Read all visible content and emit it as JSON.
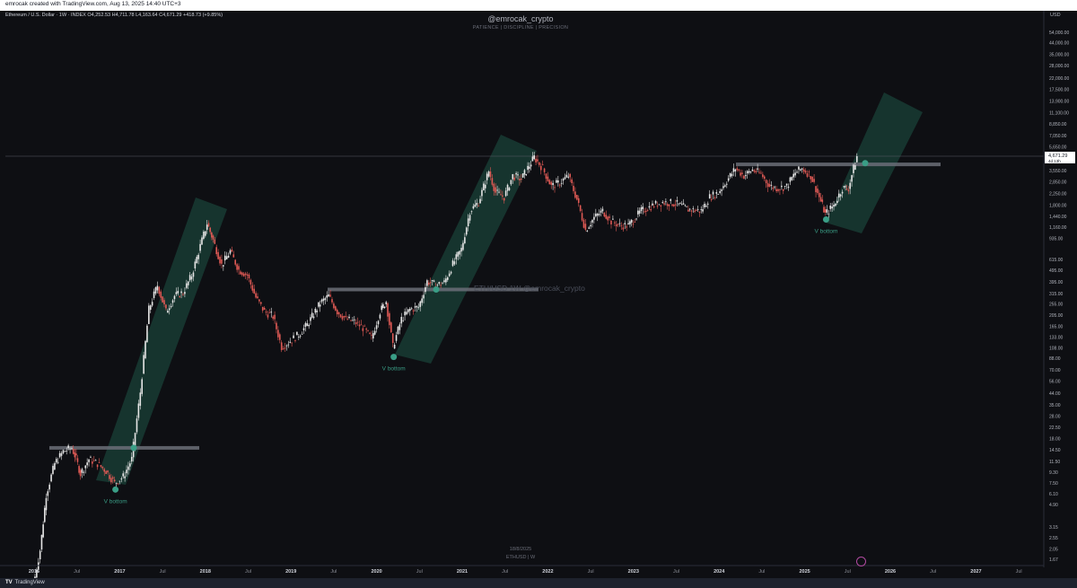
{
  "header": {
    "created_with": "emrocak created with TradingView.com, Aug 13, 2025 14:40 UTC+3",
    "symbol_info": "Ethereum / U.S. Dollar · 1W · INDEX  O4,252.53  H4,711.78  L4,163.64  C4,671.29  +418.73 (+9.85%)"
  },
  "chart_text": {
    "title": "@emrocak_crypto",
    "subtitle": "PATIENCE | DISCIPLINE | PRECISION",
    "watermark": "ETH/USD 1W  @emrocak_crypto",
    "bottom_date": "18/8/2025",
    "bottom_symbol": "ETHUSD | W",
    "currency_label": "USD"
  },
  "footer": {
    "brand": "TradingView"
  },
  "price_badge": {
    "value": "4,671.29",
    "countdown": "4d 13h"
  },
  "colors": {
    "up": "#e6e6e6",
    "down": "#e05a55",
    "channel": "#1d5a4a",
    "marker": "#3a9e86",
    "level": "#6b6e78"
  },
  "chart_data": {
    "type": "line",
    "scale": "log",
    "price_axis_ticks": [
      "54,000.00",
      "44,000.00",
      "35,000.00",
      "28,000.00",
      "22,000.00",
      "17,500.00",
      "13,900.00",
      "11,100.00",
      "8,850.00",
      "7,050.00",
      "5,650.00",
      "4,450.00",
      "3,550.00",
      "2,850.00",
      "2,250.00",
      "1,800.00",
      "1,440.00",
      "1,160.00",
      "935.00",
      "615.00",
      "495.00",
      "395.00",
      "315.00",
      "255.00",
      "205.00",
      "165.00",
      "133.00",
      "108.00",
      "88.00",
      "70.00",
      "56.00",
      "44.00",
      "35.00",
      "28.00",
      "22.50",
      "18.00",
      "14.50",
      "11.50",
      "9.30",
      "7.50",
      "6.10",
      "4.90",
      "3.15",
      "2.55",
      "2.05",
      "1.67"
    ],
    "time_axis_ticks": [
      "2016",
      "Jul",
      "2017",
      "Jul",
      "2018",
      "Jul",
      "2019",
      "Jul",
      "2020",
      "Jul",
      "2021",
      "Jul",
      "2022",
      "Jul",
      "2023",
      "Jul",
      "2024",
      "Jul",
      "2025",
      "Jul",
      "2026",
      "Jul",
      "2027",
      "Jul"
    ],
    "series": [
      {
        "values": [
          {
            "x": 2016.0,
            "y": 1
          },
          {
            "x": 2016.08,
            "y": 2
          },
          {
            "x": 2016.15,
            "y": 6
          },
          {
            "x": 2016.25,
            "y": 11
          },
          {
            "x": 2016.35,
            "y": 14
          },
          {
            "x": 2016.45,
            "y": 15
          },
          {
            "x": 2016.5,
            "y": 12
          },
          {
            "x": 2016.55,
            "y": 9
          },
          {
            "x": 2016.65,
            "y": 12
          },
          {
            "x": 2016.75,
            "y": 11
          },
          {
            "x": 2016.85,
            "y": 9.5
          },
          {
            "x": 2016.95,
            "y": 7.5
          },
          {
            "x": 2017.05,
            "y": 8.5
          },
          {
            "x": 2017.15,
            "y": 12
          },
          {
            "x": 2017.25,
            "y": 45
          },
          {
            "x": 2017.35,
            "y": 230
          },
          {
            "x": 2017.45,
            "y": 370
          },
          {
            "x": 2017.55,
            "y": 220
          },
          {
            "x": 2017.65,
            "y": 300
          },
          {
            "x": 2017.75,
            "y": 320
          },
          {
            "x": 2017.85,
            "y": 450
          },
          {
            "x": 2017.95,
            "y": 800
          },
          {
            "x": 2018.03,
            "y": 1250
          },
          {
            "x": 2018.1,
            "y": 900
          },
          {
            "x": 2018.2,
            "y": 550
          },
          {
            "x": 2018.3,
            "y": 720
          },
          {
            "x": 2018.4,
            "y": 500
          },
          {
            "x": 2018.5,
            "y": 450
          },
          {
            "x": 2018.6,
            "y": 290
          },
          {
            "x": 2018.7,
            "y": 220
          },
          {
            "x": 2018.8,
            "y": 200
          },
          {
            "x": 2018.9,
            "y": 110
          },
          {
            "x": 2018.98,
            "y": 120
          },
          {
            "x": 2019.1,
            "y": 140
          },
          {
            "x": 2019.2,
            "y": 170
          },
          {
            "x": 2019.35,
            "y": 260
          },
          {
            "x": 2019.45,
            "y": 300
          },
          {
            "x": 2019.55,
            "y": 220
          },
          {
            "x": 2019.65,
            "y": 190
          },
          {
            "x": 2019.75,
            "y": 180
          },
          {
            "x": 2019.85,
            "y": 160
          },
          {
            "x": 2019.95,
            "y": 130
          },
          {
            "x": 2020.05,
            "y": 220
          },
          {
            "x": 2020.12,
            "y": 270
          },
          {
            "x": 2020.2,
            "y": 110
          },
          {
            "x": 2020.3,
            "y": 190
          },
          {
            "x": 2020.4,
            "y": 230
          },
          {
            "x": 2020.5,
            "y": 240
          },
          {
            "x": 2020.6,
            "y": 400
          },
          {
            "x": 2020.7,
            "y": 370
          },
          {
            "x": 2020.8,
            "y": 390
          },
          {
            "x": 2020.9,
            "y": 560
          },
          {
            "x": 2021.0,
            "y": 750
          },
          {
            "x": 2021.1,
            "y": 1600
          },
          {
            "x": 2021.2,
            "y": 1900
          },
          {
            "x": 2021.32,
            "y": 3500
          },
          {
            "x": 2021.4,
            "y": 2300
          },
          {
            "x": 2021.5,
            "y": 2100
          },
          {
            "x": 2021.6,
            "y": 3200
          },
          {
            "x": 2021.7,
            "y": 3000
          },
          {
            "x": 2021.85,
            "y": 4600
          },
          {
            "x": 2021.95,
            "y": 3700
          },
          {
            "x": 2022.05,
            "y": 2600
          },
          {
            "x": 2022.15,
            "y": 2800
          },
          {
            "x": 2022.25,
            "y": 3200
          },
          {
            "x": 2022.35,
            "y": 2000
          },
          {
            "x": 2022.45,
            "y": 1100
          },
          {
            "x": 2022.55,
            "y": 1400
          },
          {
            "x": 2022.65,
            "y": 1600
          },
          {
            "x": 2022.75,
            "y": 1300
          },
          {
            "x": 2022.85,
            "y": 1200
          },
          {
            "x": 2022.95,
            "y": 1200
          },
          {
            "x": 2023.1,
            "y": 1600
          },
          {
            "x": 2023.25,
            "y": 1800
          },
          {
            "x": 2023.35,
            "y": 1900
          },
          {
            "x": 2023.5,
            "y": 1850
          },
          {
            "x": 2023.65,
            "y": 1650
          },
          {
            "x": 2023.8,
            "y": 1600
          },
          {
            "x": 2023.9,
            "y": 2100
          },
          {
            "x": 2024.0,
            "y": 2300
          },
          {
            "x": 2024.1,
            "y": 2900
          },
          {
            "x": 2024.2,
            "y": 3700
          },
          {
            "x": 2024.3,
            "y": 3200
          },
          {
            "x": 2024.4,
            "y": 3600
          },
          {
            "x": 2024.5,
            "y": 3300
          },
          {
            "x": 2024.6,
            "y": 2600
          },
          {
            "x": 2024.7,
            "y": 2500
          },
          {
            "x": 2024.8,
            "y": 2600
          },
          {
            "x": 2024.9,
            "y": 3400
          },
          {
            "x": 2024.98,
            "y": 3700
          },
          {
            "x": 2025.08,
            "y": 3200
          },
          {
            "x": 2025.18,
            "y": 2100
          },
          {
            "x": 2025.25,
            "y": 1500
          },
          {
            "x": 2025.35,
            "y": 1800
          },
          {
            "x": 2025.45,
            "y": 2500
          },
          {
            "x": 2025.52,
            "y": 2500
          },
          {
            "x": 2025.58,
            "y": 3700
          },
          {
            "x": 2025.62,
            "y": 4671.29
          }
        ]
      }
    ],
    "annotations": [
      {
        "text": "V bottom",
        "x": 2016.95,
        "y": 6.6
      },
      {
        "text": "V bottom",
        "x": 2020.2,
        "y": 90
      },
      {
        "text": "V bottom",
        "x": 2025.25,
        "y": 1350
      }
    ]
  }
}
